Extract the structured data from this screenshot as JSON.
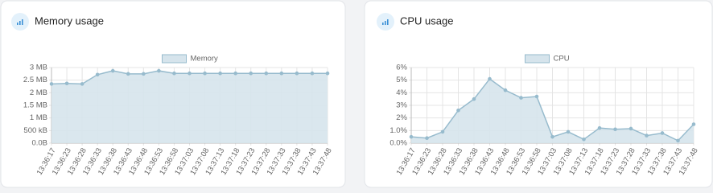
{
  "chart_data": [
    {
      "type": "line",
      "title": "Memory usage",
      "categories": [
        "13:36:17",
        "13:36:23",
        "13:36:28",
        "13:36:33",
        "13:36:38",
        "13:36:43",
        "13:36:48",
        "13:36:53",
        "13:36:58",
        "13:37:03",
        "13:37:08",
        "13:37:13",
        "13:37:18",
        "13:37:23",
        "13:37:28",
        "13:37:33",
        "13:37:38",
        "13:37:43",
        "13:37:48"
      ],
      "series": [
        {
          "name": "Memory",
          "color": "#97bbcd",
          "values": [
            2.35,
            2.37,
            2.35,
            2.72,
            2.87,
            2.75,
            2.75,
            2.87,
            2.77,
            2.77,
            2.77,
            2.77,
            2.77,
            2.77,
            2.77,
            2.77,
            2.77,
            2.77,
            2.77
          ]
        }
      ],
      "ylim": [
        0,
        3
      ],
      "yticks": [
        {
          "value": 0,
          "label": "0.0B"
        },
        {
          "value": 0.5,
          "label": "500 kB"
        },
        {
          "value": 1,
          "label": "1 MB"
        },
        {
          "value": 1.5,
          "label": "1.5 MB"
        },
        {
          "value": 2,
          "label": "2 MB"
        },
        {
          "value": 2.5,
          "label": "2.5 MB"
        },
        {
          "value": 3,
          "label": "3 MB"
        }
      ],
      "grid": true
    },
    {
      "type": "line",
      "title": "CPU usage",
      "categories": [
        "13:36:17",
        "13:36:23",
        "13:36:28",
        "13:36:33",
        "13:36:38",
        "13:36:43",
        "13:36:48",
        "13:36:53",
        "13:36:58",
        "13:37:03",
        "13:37:08",
        "13:37:13",
        "13:37:18",
        "13:37:23",
        "13:37:28",
        "13:37:33",
        "13:37:38",
        "13:37:43",
        "13:37:48"
      ],
      "series": [
        {
          "name": "CPU",
          "color": "#97bbcd",
          "values": [
            0.5,
            0.4,
            0.9,
            2.6,
            3.5,
            5.1,
            4.2,
            3.6,
            3.7,
            0.5,
            0.9,
            0.3,
            1.2,
            1.1,
            1.15,
            0.6,
            0.8,
            0.2,
            1.5
          ]
        }
      ],
      "ylim": [
        0,
        6
      ],
      "yticks": [
        {
          "value": 0,
          "label": "0.0%"
        },
        {
          "value": 1,
          "label": "1.0%"
        },
        {
          "value": 2,
          "label": "2%"
        },
        {
          "value": 3,
          "label": "3%"
        },
        {
          "value": 4,
          "label": "4%"
        },
        {
          "value": 5,
          "label": "5%"
        },
        {
          "value": 6,
          "label": "6%"
        }
      ],
      "grid": true
    }
  ]
}
